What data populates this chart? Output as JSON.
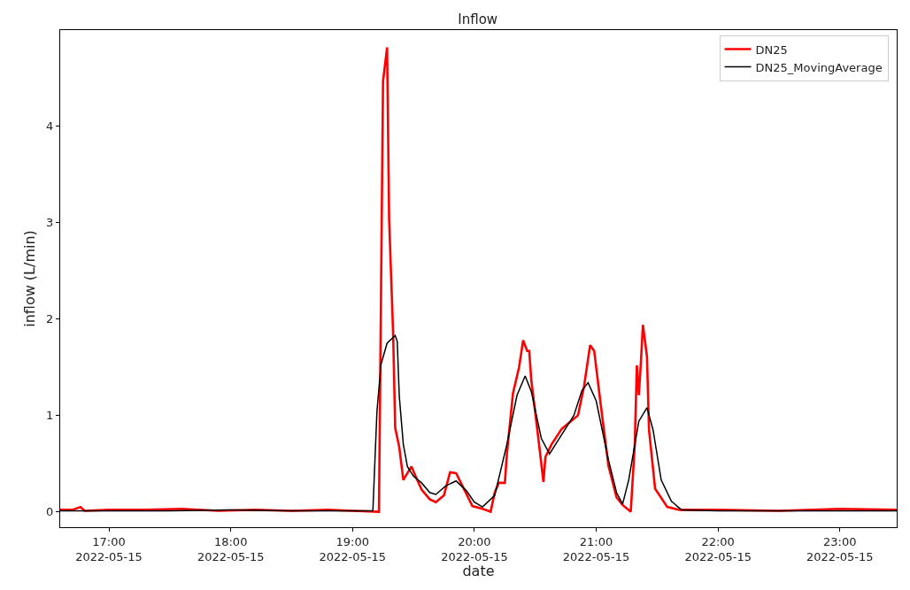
{
  "chart_data": {
    "type": "line",
    "title": "Inflow",
    "xlabel": "date",
    "ylabel": "inflow (L/min)",
    "xlim": [
      "2022-05-15T16:36",
      "2022-05-15T23:28"
    ],
    "ylim": [
      -0.16,
      5.0
    ],
    "xticks": [
      {
        "value": "2022-05-15T17:00",
        "label": "17:00\n2022-05-15"
      },
      {
        "value": "2022-05-15T18:00",
        "label": "18:00\n2022-05-15"
      },
      {
        "value": "2022-05-15T19:00",
        "label": "19:00\n2022-05-15"
      },
      {
        "value": "2022-05-15T20:00",
        "label": "20:00\n2022-05-15"
      },
      {
        "value": "2022-05-15T21:00",
        "label": "21:00\n2022-05-15"
      },
      {
        "value": "2022-05-15T22:00",
        "label": "22:00\n2022-05-15"
      },
      {
        "value": "2022-05-15T23:00",
        "label": "23:00\n2022-05-15"
      }
    ],
    "yticks": [
      0,
      1,
      2,
      3,
      4
    ],
    "grid": false,
    "legend": "top right",
    "marker": "none",
    "line_style": "solid",
    "series": [
      {
        "name": "DN25",
        "color": "#ff0000",
        "x": [
          "2022-05-15T16:36",
          "2022-05-15T16:42",
          "2022-05-15T16:46",
          "2022-05-15T16:48",
          "2022-05-15T17:00",
          "2022-05-15T17:18",
          "2022-05-15T17:36",
          "2022-05-15T17:54",
          "2022-05-15T18:12",
          "2022-05-15T18:30",
          "2022-05-15T18:48",
          "2022-05-15T19:00",
          "2022-05-15T19:13",
          "2022-05-15T19:15",
          "2022-05-15T19:17",
          "2022-05-15T19:18",
          "2022-05-15T19:20",
          "2022-05-15T19:21",
          "2022-05-15T19:23",
          "2022-05-15T19:25",
          "2022-05-15T19:29",
          "2022-05-15T19:31",
          "2022-05-15T19:34",
          "2022-05-15T19:38",
          "2022-05-15T19:41",
          "2022-05-15T19:45",
          "2022-05-15T19:48",
          "2022-05-15T19:51",
          "2022-05-15T19:55",
          "2022-05-15T19:59",
          "2022-05-15T20:04",
          "2022-05-15T20:08",
          "2022-05-15T20:10",
          "2022-05-15T20:12",
          "2022-05-15T20:15",
          "2022-05-15T20:16",
          "2022-05-15T20:19",
          "2022-05-15T20:22",
          "2022-05-15T20:24",
          "2022-05-15T20:26",
          "2022-05-15T20:27",
          "2022-05-15T20:28",
          "2022-05-15T20:31",
          "2022-05-15T20:34",
          "2022-05-15T20:35",
          "2022-05-15T20:38",
          "2022-05-15T20:43",
          "2022-05-15T20:47",
          "2022-05-15T20:51",
          "2022-05-15T20:54",
          "2022-05-15T20:57",
          "2022-05-15T20:59",
          "2022-05-15T21:02",
          "2022-05-15T21:06",
          "2022-05-15T21:10",
          "2022-05-15T21:13",
          "2022-05-15T21:17",
          "2022-05-15T21:19",
          "2022-05-15T21:20",
          "2022-05-15T21:21",
          "2022-05-15T21:22",
          "2022-05-15T21:23",
          "2022-05-15T21:25",
          "2022-05-15T21:26",
          "2022-05-15T21:29",
          "2022-05-15T21:35",
          "2022-05-15T21:41",
          "2022-05-15T22:00",
          "2022-05-15T22:30",
          "2022-05-15T23:00",
          "2022-05-15T23:28"
        ],
        "values": [
          0.02,
          0.02,
          0.05,
          0.01,
          0.02,
          0.02,
          0.03,
          0.01,
          0.02,
          0.01,
          0.02,
          0.01,
          0.0,
          4.47,
          4.82,
          3.04,
          1.83,
          0.87,
          0.67,
          0.33,
          0.47,
          0.37,
          0.23,
          0.13,
          0.1,
          0.17,
          0.41,
          0.4,
          0.23,
          0.06,
          0.03,
          0.0,
          0.2,
          0.3,
          0.3,
          0.6,
          1.23,
          1.5,
          1.78,
          1.67,
          1.67,
          1.37,
          0.85,
          0.31,
          0.57,
          0.7,
          0.86,
          0.93,
          1.0,
          1.3,
          1.73,
          1.67,
          1.15,
          0.48,
          0.15,
          0.07,
          0.0,
          0.7,
          1.52,
          1.21,
          1.55,
          1.94,
          1.61,
          0.85,
          0.24,
          0.05,
          0.02,
          0.02,
          0.01,
          0.03,
          0.02
        ]
      },
      {
        "name": "DN25_MovingAverage",
        "color": "#000000",
        "x": [
          "2022-05-15T16:36",
          "2022-05-15T17:00",
          "2022-05-15T17:30",
          "2022-05-15T18:00",
          "2022-05-15T18:30",
          "2022-05-15T19:00",
          "2022-05-15T19:10",
          "2022-05-15T19:12",
          "2022-05-15T19:14",
          "2022-05-15T19:17",
          "2022-05-15T19:21",
          "2022-05-15T19:22",
          "2022-05-15T19:23",
          "2022-05-15T19:25",
          "2022-05-15T19:27",
          "2022-05-15T19:30",
          "2022-05-15T19:34",
          "2022-05-15T19:38",
          "2022-05-15T19:41",
          "2022-05-15T19:46",
          "2022-05-15T19:51",
          "2022-05-15T19:56",
          "2022-05-15T20:00",
          "2022-05-15T20:04",
          "2022-05-15T20:10",
          "2022-05-15T20:16",
          "2022-05-15T20:21",
          "2022-05-15T20:25",
          "2022-05-15T20:28",
          "2022-05-15T20:33",
          "2022-05-15T20:37",
          "2022-05-15T20:43",
          "2022-05-15T20:49",
          "2022-05-15T20:53",
          "2022-05-15T20:56",
          "2022-05-15T21:00",
          "2022-05-15T21:06",
          "2022-05-15T21:10",
          "2022-05-15T21:13",
          "2022-05-15T21:16",
          "2022-05-15T21:21",
          "2022-05-15T21:25",
          "2022-05-15T21:28",
          "2022-05-15T21:32",
          "2022-05-15T21:37",
          "2022-05-15T21:42",
          "2022-05-15T22:00",
          "2022-05-15T22:30",
          "2022-05-15T23:00",
          "2022-05-15T23:28"
        ],
        "values": [
          0.01,
          0.01,
          0.01,
          0.02,
          0.01,
          0.01,
          0.01,
          1.04,
          1.53,
          1.75,
          1.83,
          1.77,
          1.2,
          0.7,
          0.47,
          0.37,
          0.3,
          0.2,
          0.18,
          0.27,
          0.32,
          0.22,
          0.1,
          0.05,
          0.17,
          0.7,
          1.21,
          1.41,
          1.25,
          0.76,
          0.6,
          0.8,
          1.0,
          1.26,
          1.34,
          1.15,
          0.54,
          0.2,
          0.08,
          0.33,
          0.94,
          1.08,
          0.85,
          0.33,
          0.11,
          0.02,
          0.01,
          0.01,
          0.01,
          0.01
        ]
      }
    ]
  }
}
